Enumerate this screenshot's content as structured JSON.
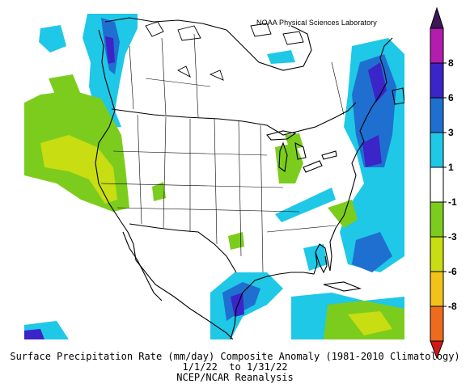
{
  "map": {
    "credit": "NOAA Physical Sciences Laboratory",
    "variable": "Surface Precipitation Rate",
    "units": "mm/day",
    "region": "North America"
  },
  "colorbar": {
    "tick_labels": [
      "8",
      "6",
      "3",
      "1",
      "-1",
      "-3",
      "-6",
      "-8"
    ],
    "levels": [
      -8,
      -6,
      -3,
      -1,
      1,
      3,
      6,
      8
    ],
    "bins": [
      {
        "from": -8,
        "to": -6,
        "color": "#ee6a1c"
      },
      {
        "from": -6,
        "to": -3,
        "color": "#f2c21a"
      },
      {
        "from": -3,
        "to": -1,
        "color": "#c8dd12"
      },
      {
        "from": -1,
        "to": 0,
        "color": "#7ccc1e"
      },
      {
        "from": 0,
        "to": 1,
        "color": "#ffffff"
      },
      {
        "from": 1,
        "to": 3,
        "color": "#1ec8e6"
      },
      {
        "from": 3,
        "to": 6,
        "color": "#1f6fd0"
      },
      {
        "from": 6,
        "to": 8,
        "color": "#3b24c8"
      },
      {
        "from": 8,
        "to": 9,
        "color": "#b21dad"
      }
    ],
    "cap_top_color": "#3d1757",
    "cap_bottom_color": "#d01818"
  },
  "caption": {
    "line1": "Surface Precipitation Rate (mm/day) Composite Anomaly (1981-2010 Climatology)",
    "line2": "1/1/22  to 1/31/22",
    "line3": "NCEP/NCAR Reanalysis"
  }
}
